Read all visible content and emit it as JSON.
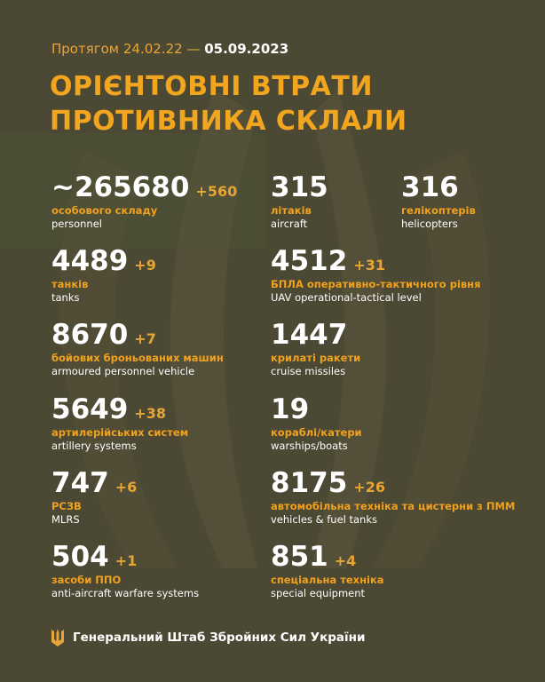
{
  "header": {
    "period_prefix": "Протягом 24.02.22 —",
    "period_end": "05.09.2023",
    "title_line1": "ОРІЄНТОВНІ ВТРАТИ",
    "title_line2": "ПРОТИВНИКА СКЛАЛИ"
  },
  "items": [
    {
      "value": "~265680",
      "delta": "+560",
      "label_uk": "особового складу",
      "label_en": "personnel"
    },
    {
      "value": "4489",
      "delta": "+9",
      "label_uk": "танків",
      "label_en": "tanks"
    },
    {
      "value": "8670",
      "delta": "+7",
      "label_uk": "бойових броньованих машин",
      "label_en": "armoured personnel vehicle"
    },
    {
      "value": "5649",
      "delta": "+38",
      "label_uk": "артилерійських систем",
      "label_en": "artillery systems"
    },
    {
      "value": "747",
      "delta": "+6",
      "label_uk": "РСЗВ",
      "label_en": "MLRS"
    },
    {
      "value": "504",
      "delta": "+1",
      "label_uk": "засоби ППО",
      "label_en": "anti-aircraft warfare systems"
    },
    {
      "value": "315",
      "label_uk": "літаків",
      "label_en": "aircraft"
    },
    {
      "value": "316",
      "label_uk": "гелікоптерів",
      "label_en": "helicopters"
    },
    {
      "value": "4512",
      "delta": "+31",
      "label_uk": "БПЛА оперативно-тактичного рівня",
      "label_en": "UAV operational-tactical level"
    },
    {
      "value": "1447",
      "label_uk": "крилаті ракети",
      "label_en": "cruise missiles"
    },
    {
      "value": "19",
      "label_uk": "кораблі/катери",
      "label_en": "warships/boats"
    },
    {
      "value": "8175",
      "delta": "+26",
      "label_uk": "автомобільна техніка та цистерни з ПММ",
      "label_en": "vehicles & fuel tanks"
    },
    {
      "value": "851",
      "delta": "+4",
      "label_uk": "спеціальна техніка",
      "label_en": "special equipment"
    }
  ],
  "footer": {
    "text": "Генеральний Штаб Збройних Сил України"
  }
}
